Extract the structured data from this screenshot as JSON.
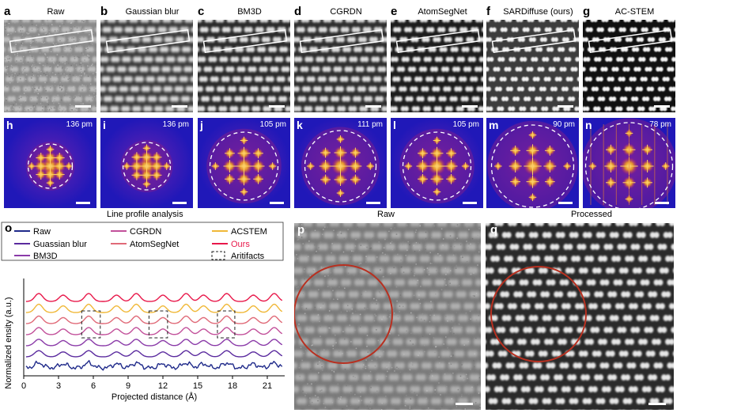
{
  "stem_panels": [
    {
      "letter": "a",
      "title": "Raw",
      "pattern": "raw"
    },
    {
      "letter": "b",
      "title": "Gaussian blur",
      "pattern": "blur"
    },
    {
      "letter": "c",
      "title": "BM3D",
      "pattern": "bm3d"
    },
    {
      "letter": "d",
      "title": "CGRDN",
      "pattern": "cgrdn"
    },
    {
      "letter": "e",
      "title": "AtomSegNet",
      "pattern": "atomseg"
    },
    {
      "letter": "f",
      "title": "SARDiffuse (ours)",
      "pattern": "sard"
    },
    {
      "letter": "g",
      "title": "AC-STEM",
      "pattern": "acstem"
    }
  ],
  "fft_panels": [
    {
      "letter": "h",
      "resolution": "136 pm"
    },
    {
      "letter": "i",
      "resolution": "136 pm"
    },
    {
      "letter": "j",
      "resolution": "105 pm"
    },
    {
      "letter": "k",
      "resolution": "111 pm"
    },
    {
      "letter": "l",
      "resolution": "105 pm"
    },
    {
      "letter": "m",
      "resolution": "90 pm"
    },
    {
      "letter": "n",
      "resolution": "78 pm"
    }
  ],
  "captions": {
    "line_profile": "Line profile analysis",
    "raw": "Raw",
    "processed": "Processed"
  },
  "panel_o": {
    "letter": "o",
    "legend": [
      {
        "label": "Raw",
        "color": "#1f2a8a"
      },
      {
        "label": "Guassian blur",
        "color": "#5a2a9e"
      },
      {
        "label": "BM3D",
        "color": "#8a3aa8"
      },
      {
        "label": "CGRDN",
        "color": "#c2509a"
      },
      {
        "label": "AtomSegNet",
        "color": "#e06a78"
      },
      {
        "label": "ACSTEM",
        "color": "#f0b838"
      },
      {
        "label": "Ours",
        "color": "#e8184a",
        "text_color": "#e8184a"
      },
      {
        "label": "Aritifacts",
        "style": "dashed-box"
      }
    ]
  },
  "panel_p": {
    "letter": "p"
  },
  "panel_q": {
    "letter": "q"
  },
  "chart_data": {
    "type": "line",
    "xlabel": "Projected distance (Å)",
    "ylabel": "Normalized ensity (a.u.)",
    "xlim": [
      0,
      22.5
    ],
    "xticks": [
      0,
      3,
      6,
      9,
      12,
      15,
      18,
      21
    ],
    "series": [
      {
        "name": "Raw",
        "color": "#1f2a8a",
        "offset": 0,
        "amp": 0.12,
        "noise": 0.35
      },
      {
        "name": "Guassian blur",
        "color": "#5a2a9e",
        "offset": 1,
        "amp": 0.28,
        "noise": 0.0
      },
      {
        "name": "BM3D",
        "color": "#8a3aa8",
        "offset": 2,
        "amp": 0.32,
        "noise": 0.0
      },
      {
        "name": "CGRDN",
        "color": "#c2509a",
        "offset": 3,
        "amp": 0.4,
        "noise": 0.0
      },
      {
        "name": "AtomSegNet",
        "color": "#e06a78",
        "offset": 4,
        "amp": 0.45,
        "noise": 0.0
      },
      {
        "name": "ACSTEM",
        "color": "#f0b838",
        "offset": 5,
        "amp": 0.55,
        "noise": 0.0
      },
      {
        "name": "Ours",
        "color": "#e8184a",
        "offset": 6,
        "amp": 0.5,
        "noise": 0.0
      }
    ],
    "artifact_boxes_x": [
      [
        5.0,
        6.6
      ],
      [
        10.8,
        12.4
      ],
      [
        16.7,
        18.2
      ]
    ]
  }
}
